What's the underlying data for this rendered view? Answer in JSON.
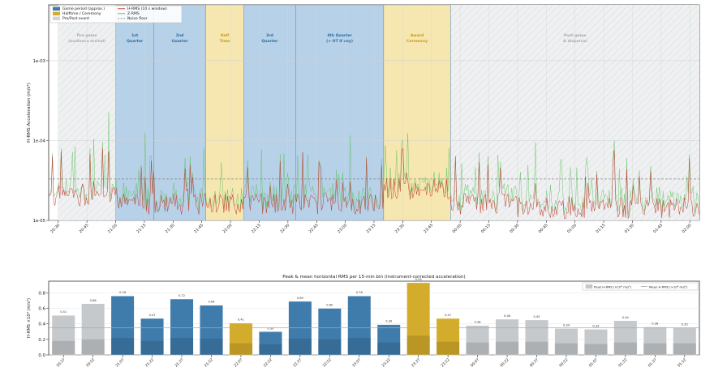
{
  "colors": {
    "game": "#3f7cac",
    "game_fill": "#9ec1e0",
    "halftime": "#d4ac2b",
    "halftime_fill": "#f3dd96",
    "prepost": "#c5c9cc",
    "hrms": "#c0392b",
    "zrms": "#5cbf5c",
    "noise": "#888888",
    "mean_line": "#aaaaaa"
  },
  "chart_data": [
    {
      "type": "line",
      "title": "",
      "ylabel": "H-RMS Acceleration (m/s²)",
      "y_scale": "log",
      "ylim": [
        1e-05,
        0.005
      ],
      "y_ticks": [
        {
          "value": 1e-05,
          "label": "1e-05"
        },
        {
          "value": 0.0001,
          "label": "1e-04"
        },
        {
          "value": 0.001,
          "label": "1e-03"
        }
      ],
      "x_ticks": [
        "20:30",
        "20:45",
        "21:00",
        "21:15",
        "21:30",
        "21:45",
        "22:00",
        "22:15",
        "22:30",
        "22:45",
        "23:00",
        "23:15",
        "23:30",
        "23:45",
        "00:00",
        "00:15",
        "00:30",
        "00:45",
        "01:00",
        "01:15",
        "01:30",
        "01:45",
        "02:00"
      ],
      "noise_floor": 3.3e-05,
      "legend": {
        "placement": "top-left",
        "entries": [
          {
            "label": "Game period (approx.)",
            "kind": "game"
          },
          {
            "label": "Halftime / Ceremony",
            "kind": "halftime"
          },
          {
            "label": "Pre/Post event",
            "kind": "prepost"
          },
          {
            "label": "H-RMS (10 s window)",
            "kind": "hrms"
          },
          {
            "label": "Z-RMS",
            "kind": "zrms"
          },
          {
            "label": "Noise floor",
            "kind": "noise"
          }
        ]
      },
      "periods": [
        {
          "start": "20:30",
          "end": "21:00",
          "kind": "prepost",
          "label": [
            "Pre-game",
            "(audience arrival)"
          ]
        },
        {
          "start": "21:00",
          "end": "21:20",
          "kind": "game",
          "label": [
            "1st",
            "Quarter"
          ]
        },
        {
          "start": "21:20",
          "end": "21:47",
          "kind": "game",
          "label": [
            "2nd",
            "Quarter"
          ]
        },
        {
          "start": "21:47",
          "end": "22:07",
          "kind": "halftime",
          "label": [
            "Half",
            "Time"
          ]
        },
        {
          "start": "22:07",
          "end": "22:34",
          "kind": "game",
          "label": [
            "3rd",
            "Quarter"
          ]
        },
        {
          "start": "22:34",
          "end": "23:20",
          "kind": "game",
          "label": [
            "4th Quarter",
            "(+ OT if any)"
          ]
        },
        {
          "start": "23:20",
          "end": "23:55",
          "kind": "halftime",
          "label": [
            "Award",
            "Ceremony"
          ]
        },
        {
          "start": "23:55",
          "end": "02:05",
          "kind": "prepost",
          "label": [
            "Post-game",
            "& dispersal"
          ]
        }
      ]
    },
    {
      "type": "bar",
      "title": "Peak & mean horizontal RMS per 15-min bin  (instrument-corrected acceleration)",
      "ylabel": "H-RMS ×10⁴ (m/s²)",
      "ylim": [
        0,
        0.95
      ],
      "y_ticks": [
        "0.0",
        "0.2",
        "0.4",
        "0.6",
        "0.8"
      ],
      "mean_line": 0.35,
      "legend": {
        "placement": "top-right",
        "entries": [
          "Peak H-RMS (×10⁴ m/s²)",
          "Mean H-RMS (×10⁴ m/s²)"
        ]
      },
      "categories": [
        "20:37",
        "20:52",
        "21:07",
        "21:22",
        "21:37",
        "21:52",
        "22:07",
        "22:22",
        "22:37",
        "22:52",
        "23:07",
        "23:22",
        "23:37",
        "23:52",
        "00:07",
        "00:22",
        "00:37",
        "00:52",
        "01:07",
        "01:22",
        "01:37",
        "01:52"
      ],
      "kinds": [
        "prepost",
        "prepost",
        "game",
        "game",
        "game",
        "game",
        "halftime",
        "game",
        "game",
        "game",
        "game",
        "game",
        "halftime",
        "halftime",
        "prepost",
        "prepost",
        "prepost",
        "prepost",
        "prepost",
        "prepost",
        "prepost",
        "prepost"
      ],
      "values": [
        0.51,
        0.66,
        0.76,
        0.47,
        0.72,
        0.64,
        0.41,
        0.3,
        0.69,
        0.6,
        0.76,
        0.39,
        0.93,
        0.47,
        0.38,
        0.46,
        0.45,
        0.34,
        0.33,
        0.44,
        0.36,
        0.35
      ],
      "means": [
        0.18,
        0.2,
        0.22,
        0.18,
        0.22,
        0.21,
        0.15,
        0.14,
        0.21,
        0.2,
        0.22,
        0.16,
        0.25,
        0.17,
        0.16,
        0.17,
        0.17,
        0.15,
        0.14,
        0.16,
        0.15,
        0.15
      ],
      "data_labels": [
        "0.51",
        "0.66",
        "0.76",
        "0.47",
        "0.72",
        "0.64",
        "0.41",
        "0.30",
        "0.69",
        "0.60",
        "0.76",
        "0.39",
        "0.93",
        "0.47",
        "0.38",
        "0.46",
        "0.45",
        "0.34",
        "0.33",
        "0.44",
        "0.36",
        "0.35"
      ]
    }
  ]
}
